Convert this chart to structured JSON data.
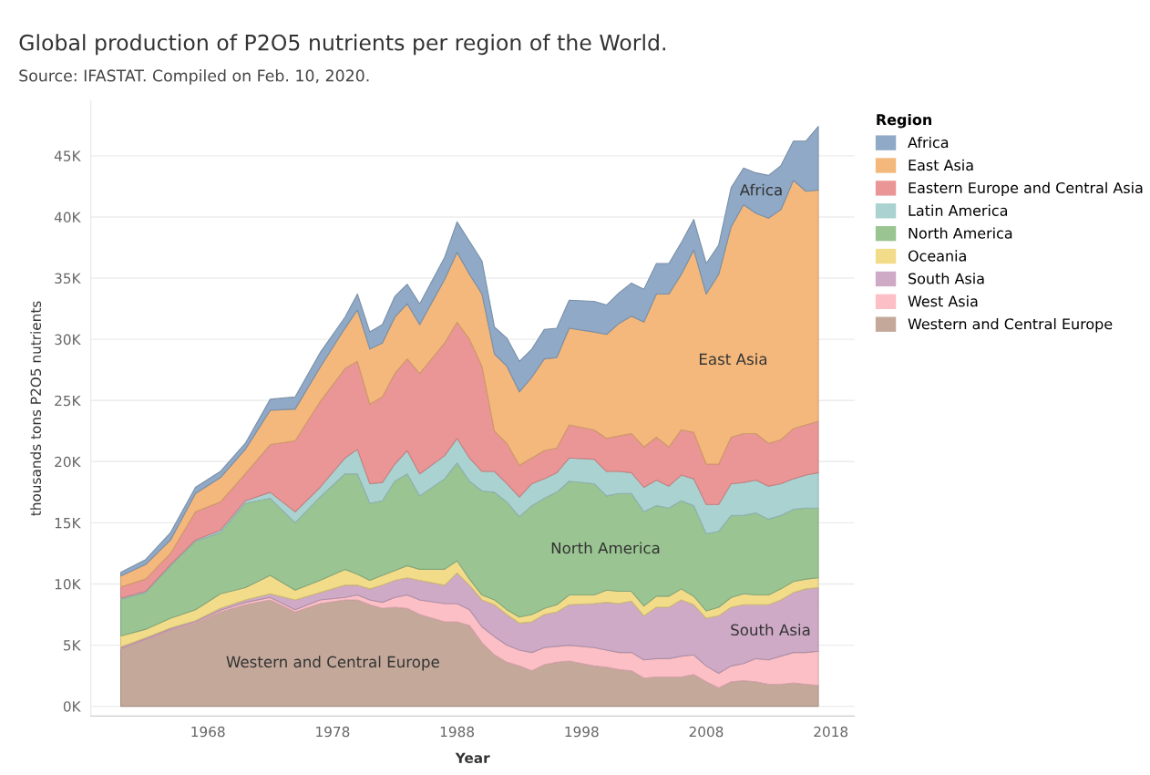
{
  "chart_data": {
    "type": "area",
    "stacked": true,
    "title": "Global production of P2O5 nutrients per region of the World.",
    "subtitle": "Source: IFASTAT. Compiled on Feb. 10, 2020.",
    "xlabel": "Year",
    "ylabel": "thousands tons P2O5 nutrients",
    "legend_title": "Region",
    "x": [
      1961,
      1963,
      1965,
      1967,
      1969,
      1971,
      1973,
      1975,
      1977,
      1979,
      1980,
      1981,
      1982,
      1983,
      1984,
      1985,
      1987,
      1988,
      1989,
      1990,
      1991,
      1992,
      1993,
      1994,
      1995,
      1996,
      1997,
      1999,
      2000,
      2001,
      2002,
      2003,
      2004,
      2005,
      2006,
      2007,
      2008,
      2009,
      2010,
      2011,
      2012,
      2013,
      2014,
      2015,
      2016,
      2017
    ],
    "series": [
      {
        "name": "Western and Central Europe",
        "color": "#c4a99b",
        "values": [
          4700,
          5400,
          6200,
          6800,
          7700,
          8300,
          8700,
          7700,
          8400,
          8700,
          8700,
          8300,
          8000,
          8100,
          8000,
          7500,
          6900,
          6900,
          6600,
          5200,
          4200,
          3600,
          3300,
          2900,
          3400,
          3600,
          3700,
          3300,
          3200,
          3000,
          2900,
          2300,
          2400,
          2400,
          2400,
          2600,
          2000,
          1500,
          2000,
          2100,
          2000,
          1800,
          1800,
          1900,
          1800,
          1700
        ]
      },
      {
        "name": "West Asia",
        "color": "#fcbfc6",
        "values": [
          50,
          100,
          100,
          100,
          150,
          200,
          200,
          200,
          300,
          200,
          400,
          400,
          500,
          800,
          1100,
          1200,
          1500,
          1500,
          1300,
          1300,
          1500,
          1400,
          1300,
          1500,
          1400,
          1300,
          1300,
          1500,
          1400,
          1400,
          1500,
          1500,
          1500,
          1500,
          1700,
          1600,
          1300,
          1200,
          1300,
          1400,
          1900,
          2000,
          2300,
          2500,
          2600,
          2800
        ]
      },
      {
        "name": "South Asia",
        "color": "#ceaac6",
        "values": [
          100,
          100,
          100,
          100,
          150,
          200,
          300,
          800,
          600,
          1000,
          800,
          900,
          1400,
          1400,
          1400,
          1600,
          1500,
          2500,
          2000,
          2200,
          2600,
          2500,
          2200,
          2500,
          2700,
          2800,
          3300,
          3600,
          3900,
          4000,
          4200,
          3600,
          4200,
          4200,
          4600,
          4100,
          3900,
          4700,
          4800,
          4800,
          4400,
          4500,
          4600,
          4900,
          5200,
          5200
        ]
      },
      {
        "name": "Oceania",
        "color": "#f2dc8a",
        "values": [
          900,
          700,
          800,
          900,
          1200,
          1000,
          1500,
          800,
          1000,
          1300,
          900,
          700,
          800,
          800,
          1000,
          900,
          1300,
          1000,
          500,
          400,
          400,
          400,
          500,
          600,
          500,
          600,
          800,
          700,
          1000,
          1000,
          800,
          800,
          900,
          900,
          900,
          700,
          600,
          700,
          800,
          900,
          800,
          800,
          900,
          900,
          800,
          800
        ]
      },
      {
        "name": "North America",
        "color": "#9ac592",
        "values": [
          3000,
          3000,
          4300,
          5600,
          5000,
          6900,
          6300,
          5500,
          6800,
          7800,
          8200,
          6300,
          6100,
          7300,
          7500,
          6000,
          7400,
          8000,
          8000,
          8500,
          8800,
          8800,
          8200,
          8900,
          9000,
          9200,
          9300,
          9100,
          7700,
          8000,
          8000,
          7700,
          7400,
          7200,
          7200,
          7400,
          6300,
          6200,
          6700,
          6400,
          6700,
          6200,
          6000,
          5900,
          5800,
          5700
        ]
      },
      {
        "name": "Latin America",
        "color": "#a9d2d0",
        "values": [
          100,
          100,
          100,
          100,
          200,
          200,
          500,
          900,
          800,
          1300,
          2000,
          1600,
          1500,
          1400,
          1900,
          1800,
          1900,
          2000,
          1900,
          1600,
          1700,
          1500,
          1600,
          1800,
          1600,
          1600,
          1900,
          2000,
          2000,
          1800,
          1700,
          2000,
          2100,
          1800,
          2100,
          2200,
          2400,
          2200,
          2600,
          2700,
          2700,
          2700,
          2600,
          2500,
          2700,
          2900
        ]
      },
      {
        "name": "Eastern Europe and Central Asia",
        "color": "#eb9696",
        "values": [
          900,
          1000,
          900,
          2300,
          2300,
          2200,
          3900,
          5800,
          7000,
          7300,
          7200,
          6500,
          7000,
          7400,
          7500,
          8200,
          9200,
          9500,
          9700,
          8600,
          3300,
          3300,
          2600,
          2100,
          2300,
          2000,
          2700,
          2400,
          2700,
          2900,
          3200,
          3300,
          3500,
          3200,
          3700,
          3800,
          3300,
          3300,
          3800,
          4000,
          3800,
          3500,
          3600,
          4100,
          4100,
          4200
        ]
      },
      {
        "name": "East Asia",
        "color": "#f4b87c",
        "values": [
          900,
          1200,
          1100,
          1500,
          2000,
          2000,
          2800,
          2600,
          2800,
          3300,
          4200,
          4500,
          4400,
          4600,
          4500,
          4000,
          5200,
          5700,
          5300,
          5900,
          6300,
          6300,
          6000,
          6600,
          7500,
          7400,
          7900,
          8000,
          8500,
          9200,
          9600,
          10200,
          11700,
          12500,
          12700,
          14900,
          13900,
          15500,
          17200,
          18700,
          18000,
          18400,
          18800,
          20300,
          19100,
          18900
        ]
      },
      {
        "name": "Africa",
        "color": "#8fa9c6",
        "values": [
          300,
          400,
          600,
          500,
          500,
          500,
          900,
          1000,
          1200,
          900,
          1300,
          1400,
          1500,
          1700,
          1600,
          1700,
          1800,
          2500,
          2700,
          2700,
          2200,
          2300,
          2500,
          2300,
          2400,
          2400,
          2300,
          2500,
          2400,
          2500,
          2700,
          2700,
          2500,
          2500,
          2600,
          2500,
          2500,
          2400,
          3200,
          3000,
          3300,
          3500,
          3600,
          3200,
          4100,
          5200
        ]
      }
    ],
    "annotations": [
      "Africa",
      "East Asia",
      "North America",
      "South Asia",
      "Western and Central Europe"
    ],
    "xlim": [
      1958.6,
      2019.9
    ],
    "ylim": [
      -800,
      49500
    ],
    "xticks": [
      1968,
      1978,
      1988,
      1998,
      2008,
      2018
    ],
    "yticks": [
      {
        "value": 0,
        "label": "0K"
      },
      {
        "value": 5000,
        "label": "5K"
      },
      {
        "value": 10000,
        "label": "10K"
      },
      {
        "value": 15000,
        "label": "15K"
      },
      {
        "value": 20000,
        "label": "20K"
      },
      {
        "value": 25000,
        "label": "25K"
      },
      {
        "value": 30000,
        "label": "30K"
      },
      {
        "value": 35000,
        "label": "35K"
      },
      {
        "value": 40000,
        "label": "40K"
      },
      {
        "value": 45000,
        "label": "45K"
      }
    ],
    "grid": "y",
    "legend": "right"
  }
}
